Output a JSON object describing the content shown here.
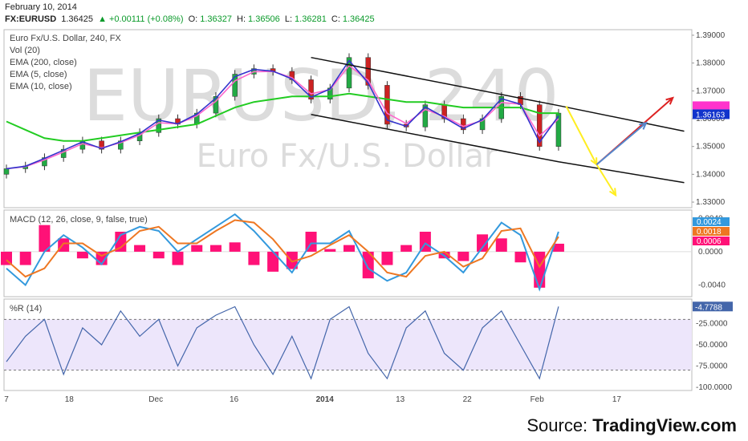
{
  "header": {
    "date": "February 10, 2014",
    "symbol": "FX:EURUSD",
    "last": "1.36425",
    "change": "+0.00111 (+0.08%)",
    "open_label": "O:",
    "open": "1.36327",
    "high_label": "H:",
    "high": "1.36506",
    "low_label": "L:",
    "low": "1.36281",
    "close_label": "C:",
    "close": "1.36425"
  },
  "legend": {
    "title": "Euro Fx/U.S. Dollar, 240, FX",
    "items": [
      "Vol (20)",
      "EMA (200, close)",
      "EMA (5, close)",
      "EMA (10, close)"
    ]
  },
  "watermark": {
    "symbol": "EURUSD, 240",
    "name": "Euro Fx/U.S. Dollar"
  },
  "source": {
    "prefix": "Source: ",
    "name": "TradingView.com"
  },
  "colors": {
    "ema200": "#22cc22",
    "ema5": "#3333cc",
    "ema10": "#ff66cc",
    "candle_up": "#22aa44",
    "candle_down": "#cc2222",
    "macd": "#3399dd",
    "signal": "#ee7722",
    "hist": "#ff1177",
    "pctr": "#4466aa",
    "pctr_band": "#ede6fb",
    "arrow_yellow": "#ffee22",
    "arrow_red": "#dd2222",
    "arrow_blue": "#5588cc",
    "price_tag_pink": "#ff33cc",
    "price_tag_blue": "#1133cc"
  },
  "chart_data": [
    {
      "type": "candlestick",
      "title": "Euro Fx/U.S. Dollar, 240, FX",
      "ylim": [
        1.328,
        1.392
      ],
      "y_ticks": [
        "1.39000",
        "1.38000",
        "1.37000",
        "1.36000",
        "1.35000",
        "1.34000",
        "1.33000"
      ],
      "y_tick_values": [
        1.39,
        1.38,
        1.37,
        1.36,
        1.35,
        1.34,
        1.33
      ],
      "x_tick_labels": [
        "7",
        "18",
        "Dec",
        "16",
        "2014",
        "13",
        "22",
        "Feb",
        "17"
      ],
      "price_tags": [
        "1.36163"
      ],
      "x": [
        0,
        5,
        10,
        15,
        20,
        25,
        30,
        35,
        40,
        45,
        50,
        55,
        60,
        65,
        70,
        75,
        80,
        85,
        90,
        95,
        100,
        105,
        110,
        115,
        120,
        125,
        130,
        135,
        140,
        145
      ],
      "close": [
        1.342,
        1.343,
        1.346,
        1.349,
        1.352,
        1.349,
        1.352,
        1.355,
        1.36,
        1.358,
        1.362,
        1.368,
        1.376,
        1.378,
        1.377,
        1.374,
        1.367,
        1.371,
        1.382,
        1.372,
        1.358,
        1.357,
        1.365,
        1.36,
        1.356,
        1.36,
        1.368,
        1.365,
        1.35,
        1.362
      ],
      "ema200": [
        1.359,
        1.356,
        1.353,
        1.352,
        1.352,
        1.353,
        1.354,
        1.355,
        1.356,
        1.357,
        1.358,
        1.361,
        1.364,
        1.366,
        1.367,
        1.368,
        1.368,
        1.368,
        1.369,
        1.368,
        1.367,
        1.366,
        1.366,
        1.365,
        1.364,
        1.364,
        1.364,
        1.364,
        1.362,
        1.362
      ],
      "channel_upper": [
        [
          80,
          1.382
        ],
        [
          145,
          1.3647
        ],
        [
          178,
          1.3555
        ]
      ],
      "channel_lower": [
        [
          80,
          1.3615
        ],
        [
          145,
          1.3445
        ],
        [
          178,
          1.337
        ]
      ],
      "projections": [
        {
          "color": "yellow",
          "from": [
            147,
            1.3645
          ],
          "to": [
            155,
            1.3435
          ]
        },
        {
          "color": "yellow",
          "from": [
            155,
            1.3435
          ],
          "to": [
            160,
            1.3325
          ]
        },
        {
          "color": "red",
          "from": [
            155,
            1.3435
          ],
          "to": [
            175,
            1.3675
          ]
        },
        {
          "color": "blue",
          "from": [
            155,
            1.3435
          ],
          "to": [
            168,
            1.3585
          ]
        }
      ]
    },
    {
      "type": "line",
      "title": "MACD (12, 26, close, 9, false, true)",
      "ylim": [
        -0.0054,
        0.005
      ],
      "y_ticks": [
        "0.0040",
        "0.0000",
        "-0.0040"
      ],
      "y_tick_values": [
        0.004,
        0.0,
        -0.004
      ],
      "tag_labels": [
        "0.0024",
        "0.0018",
        "0.0006"
      ],
      "x": [
        0,
        5,
        10,
        15,
        20,
        25,
        30,
        35,
        40,
        45,
        50,
        55,
        60,
        65,
        70,
        75,
        80,
        85,
        90,
        95,
        100,
        105,
        110,
        115,
        120,
        125,
        130,
        135,
        140,
        145
      ],
      "macd": [
        -0.002,
        -0.004,
        0.0,
        0.002,
        0.0005,
        -0.0015,
        0.002,
        0.003,
        0.0025,
        0.0,
        0.0015,
        0.003,
        0.0045,
        0.0025,
        0.0,
        -0.0025,
        0.001,
        0.001,
        0.0025,
        -0.002,
        -0.0035,
        -0.0025,
        0.001,
        -0.0005,
        -0.0025,
        0.0005,
        0.0035,
        0.002,
        -0.0045,
        0.0024
      ],
      "signal": [
        -0.001,
        -0.003,
        -0.002,
        0.001,
        0.001,
        -0.0005,
        0.0005,
        0.0025,
        0.003,
        0.001,
        0.001,
        0.0025,
        0.0038,
        0.0035,
        0.0015,
        -0.0012,
        -0.0005,
        0.0008,
        0.002,
        0.0,
        -0.0025,
        -0.003,
        -0.0005,
        0.0,
        -0.0018,
        -0.0008,
        0.0025,
        0.0028,
        -0.0018,
        0.0018
      ]
    },
    {
      "type": "line",
      "title": "%R (14)",
      "ylim": [
        -104,
        4
      ],
      "y_ticks": [
        "-25.0000",
        "-50.0000",
        "-75.0000",
        "-100.0000"
      ],
      "y_tick_values": [
        -25,
        -50,
        -75,
        -100
      ],
      "bands": [
        -20,
        -80
      ],
      "last_label": "-4.7788",
      "x": [
        0,
        5,
        10,
        15,
        20,
        25,
        30,
        35,
        40,
        45,
        50,
        55,
        60,
        65,
        70,
        75,
        80,
        85,
        90,
        95,
        100,
        105,
        110,
        115,
        120,
        125,
        130,
        135,
        140,
        145
      ],
      "values": [
        -70,
        -40,
        -20,
        -85,
        -30,
        -50,
        -10,
        -40,
        -20,
        -75,
        -30,
        -15,
        -5,
        -50,
        -85,
        -40,
        -90,
        -20,
        -5,
        -60,
        -90,
        -30,
        -10,
        -60,
        -80,
        -30,
        -10,
        -50,
        -90,
        -4.78
      ]
    }
  ]
}
